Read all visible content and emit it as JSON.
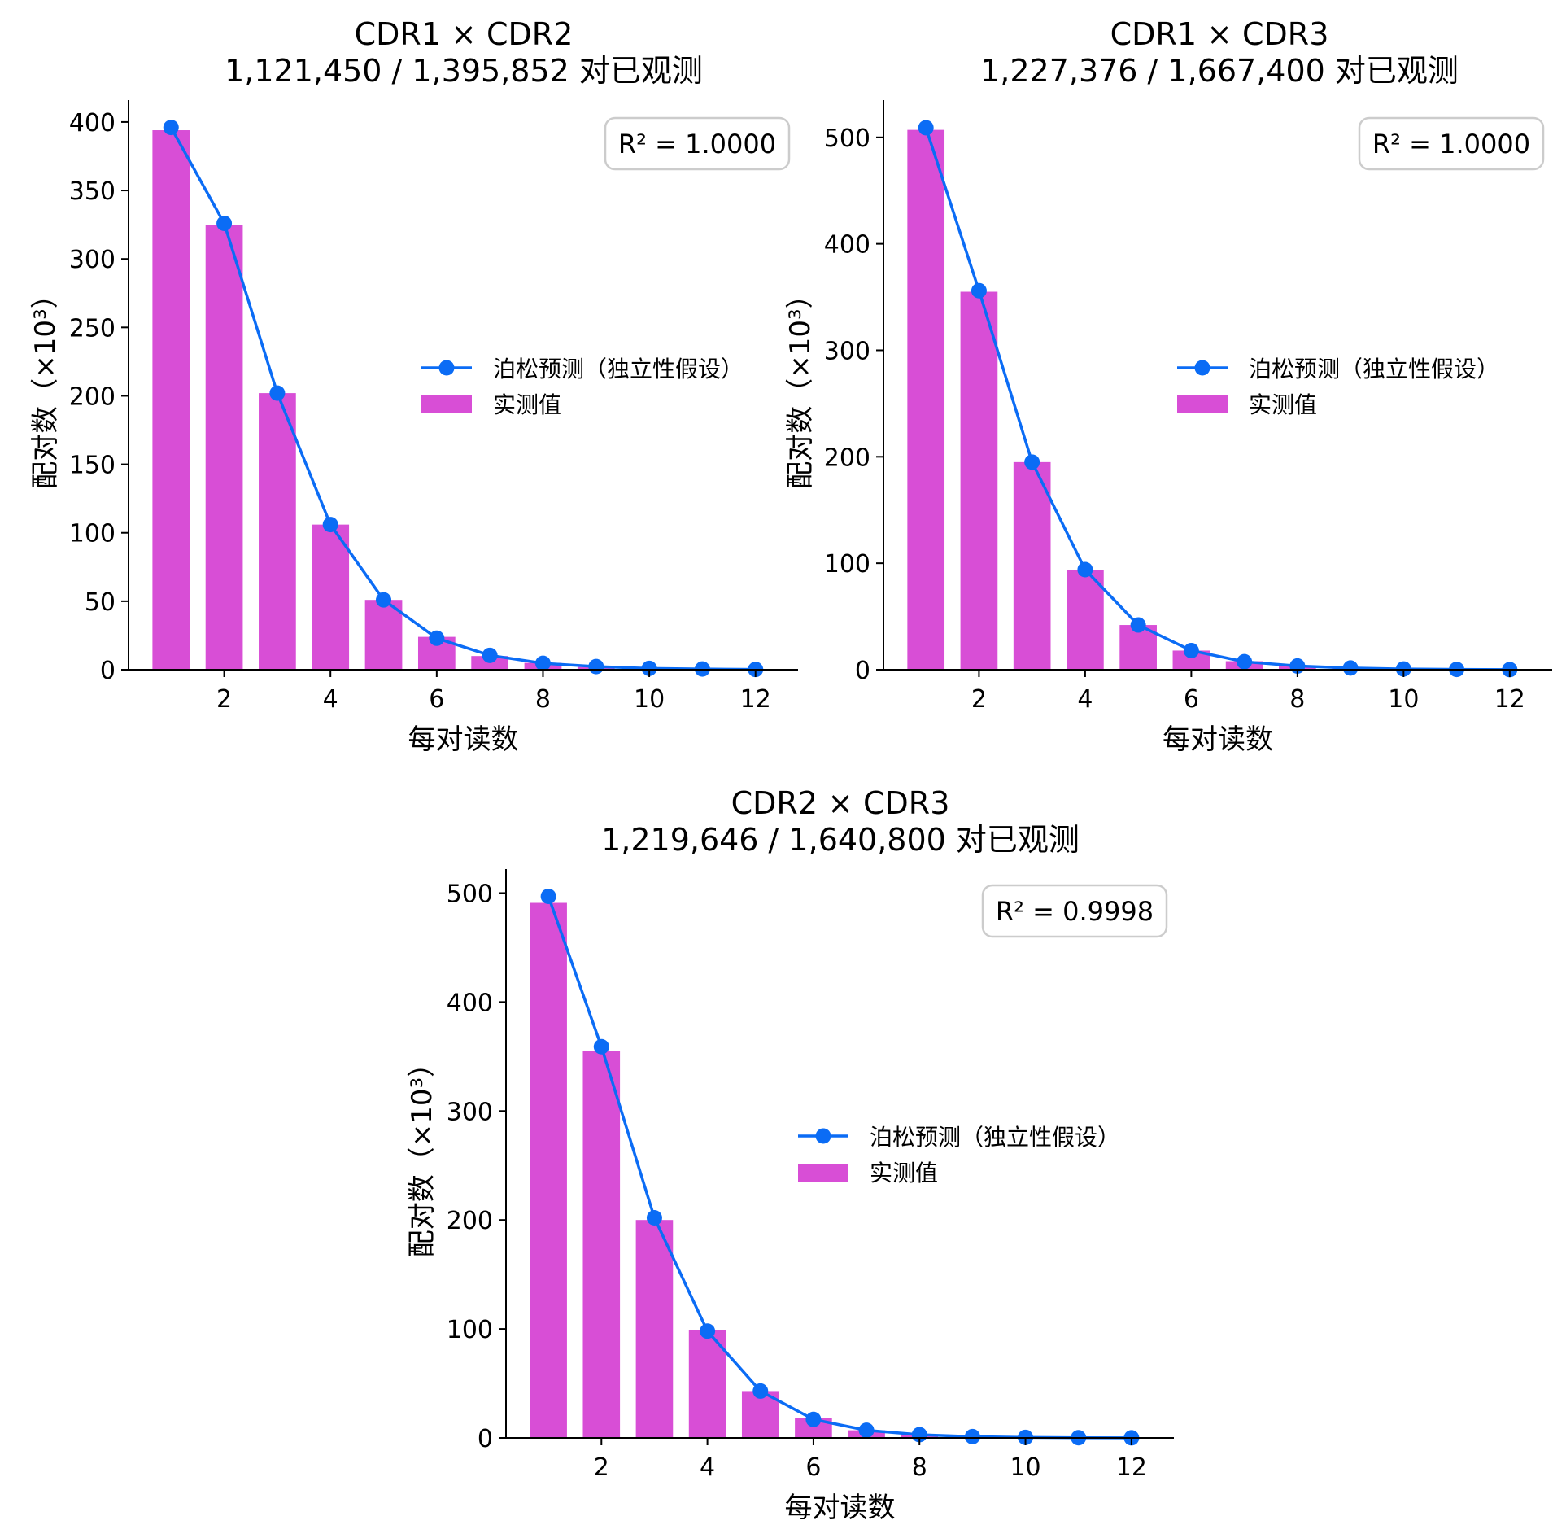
{
  "colors": {
    "observed_bar": "#d84ed6",
    "poisson_line": "#0b6cf5",
    "axis": "#000000",
    "r2_box_border": "#cccccc"
  },
  "legend": {
    "poisson_label": "泊松预测（独立性假设）",
    "observed_label": "实测值"
  },
  "axes_labels": {
    "xlabel": "每对读数",
    "ylabel": "配对数（×10³）"
  },
  "chart_data": [
    {
      "type": "bar",
      "title": "CDR1 × CDR2",
      "subtitle": "1,121,450 / 1,395,852 对已观测",
      "r2": "R² = 1.0000",
      "xlabel": "每对读数",
      "ylabel": "配对数（×10³）",
      "x": [
        1,
        2,
        3,
        4,
        5,
        6,
        7,
        8,
        9,
        10,
        11,
        12
      ],
      "xticks": [
        2,
        4,
        6,
        8,
        10,
        12
      ],
      "xlim": [
        0.2,
        12.8
      ],
      "ylim": [
        0,
        416
      ],
      "yticks": [
        0,
        50,
        100,
        150,
        200,
        250,
        300,
        350,
        400
      ],
      "legend_position": "center-right",
      "series": [
        {
          "name": "实测值",
          "kind": "bar",
          "values": [
            394,
            325,
            202,
            106,
            51,
            24,
            10,
            5,
            2,
            1,
            0.4,
            0.2
          ]
        },
        {
          "name": "泊松预测（独立性假设）",
          "kind": "line",
          "values": [
            396,
            326,
            202,
            106,
            51,
            23,
            10.5,
            4.7,
            2.3,
            1.0,
            0.5,
            0.2
          ]
        }
      ]
    },
    {
      "type": "bar",
      "title": "CDR1 × CDR3",
      "subtitle": "1,227,376 / 1,667,400 对已观测",
      "r2": "R² = 1.0000",
      "xlabel": "每对读数",
      "ylabel": "配对数（×10³）",
      "x": [
        1,
        2,
        3,
        4,
        5,
        6,
        7,
        8,
        9,
        10,
        11,
        12
      ],
      "xticks": [
        2,
        4,
        6,
        8,
        10,
        12
      ],
      "xlim": [
        0.2,
        12.8
      ],
      "ylim": [
        0,
        535
      ],
      "yticks": [
        0,
        100,
        200,
        300,
        400,
        500
      ],
      "legend_position": "center-right",
      "series": [
        {
          "name": "实测值",
          "kind": "bar",
          "values": [
            507,
            355,
            195,
            94,
            42,
            18,
            8,
            4,
            1.5,
            0.6,
            0.3,
            0.1
          ]
        },
        {
          "name": "泊松预测（独立性假设）",
          "kind": "line",
          "values": [
            509,
            356,
            195,
            94,
            42,
            18,
            7.5,
            3.5,
            1.6,
            0.7,
            0.3,
            0.1
          ]
        }
      ]
    },
    {
      "type": "bar",
      "title": "CDR2 × CDR3",
      "subtitle": "1,219,646 / 1,640,800 对已观测",
      "r2": "R² = 0.9998",
      "xlabel": "每对读数",
      "ylabel": "配对数（×10³）",
      "x": [
        1,
        2,
        3,
        4,
        5,
        6,
        7,
        8,
        9,
        10,
        11,
        12
      ],
      "xticks": [
        2,
        4,
        6,
        8,
        10,
        12
      ],
      "xlim": [
        0.2,
        12.8
      ],
      "ylim": [
        0,
        522
      ],
      "yticks": [
        0,
        100,
        200,
        300,
        400,
        500
      ],
      "legend_position": "center-right",
      "series": [
        {
          "name": "实测值",
          "kind": "bar",
          "values": [
            491,
            355,
            200,
            99,
            43,
            18,
            7,
            3,
            1.2,
            0.5,
            0.2,
            0.1
          ]
        },
        {
          "name": "泊松预测（独立性假设）",
          "kind": "line",
          "values": [
            497,
            359,
            202,
            98,
            43,
            17,
            7,
            3,
            1.2,
            0.5,
            0.2,
            0.1
          ]
        }
      ]
    }
  ]
}
